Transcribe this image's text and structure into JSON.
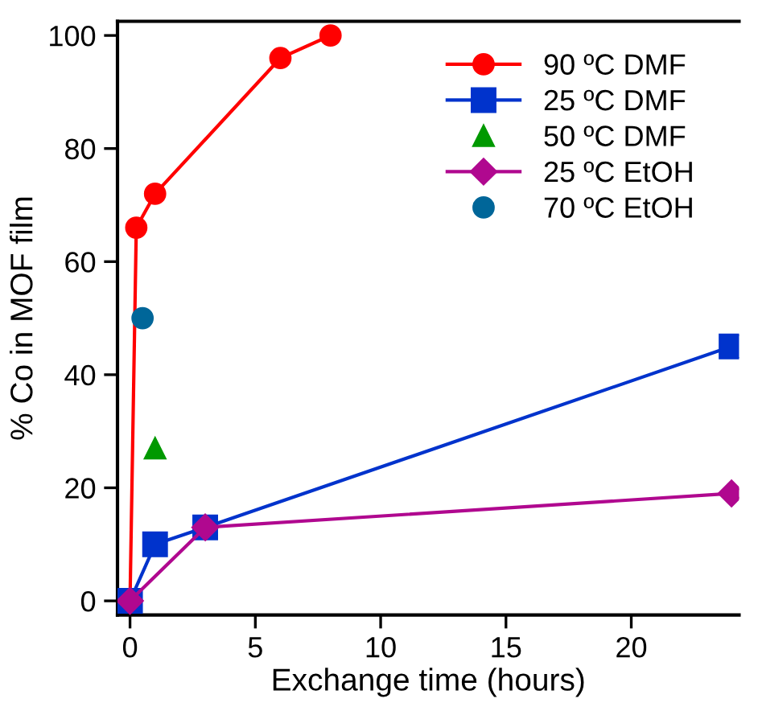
{
  "chart_data": {
    "type": "line",
    "xlabel": "Exchange time (hours)",
    "ylabel": "% Co in MOF film",
    "xlim": [
      -0.5,
      24.3
    ],
    "ylim": [
      -2.5,
      102.5
    ],
    "xticks": [
      0,
      5,
      10,
      15,
      20
    ],
    "yticks": [
      0,
      20,
      40,
      60,
      80,
      100
    ],
    "grid": false,
    "legend": "top right",
    "series": [
      {
        "name": "90 ºC DMF",
        "color": "#ff0000",
        "marker": "circle",
        "x": [
          0,
          0.25,
          1,
          6,
          8
        ],
        "values": [
          0,
          66,
          72,
          96,
          100
        ]
      },
      {
        "name": "25 ºC DMF",
        "color": "#0033cc",
        "marker": "square",
        "x": [
          0,
          1,
          3,
          24
        ],
        "values": [
          0,
          10,
          13,
          45
        ]
      },
      {
        "name": "50 ºC DMF",
        "type": "scatter",
        "color": "#009900",
        "marker": "triangle",
        "x": [
          1
        ],
        "values": [
          27
        ]
      },
      {
        "name": "25 ºC EtOH",
        "color": "#b0088f",
        "marker": "diamond",
        "x": [
          0,
          3,
          24
        ],
        "values": [
          0,
          13,
          19
        ]
      },
      {
        "name": "70 ºC EtOH",
        "type": "scatter",
        "color": "#006699",
        "marker": "circle",
        "x": [
          0.5
        ],
        "values": [
          50
        ]
      }
    ]
  }
}
